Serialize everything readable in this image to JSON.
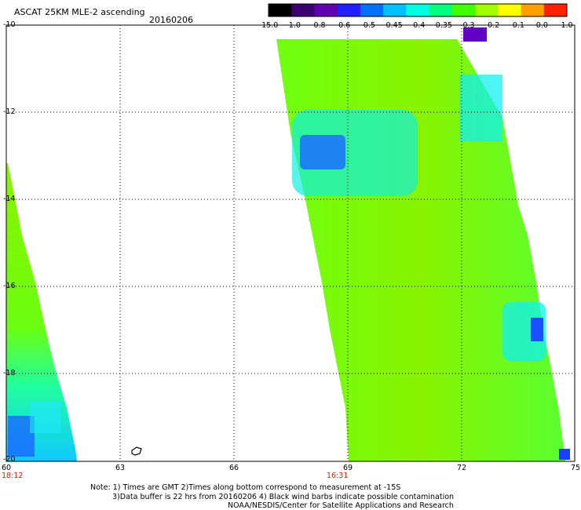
{
  "header": {
    "title": "ASCAT 25KM MLE-2 ascending",
    "date": "20160206"
  },
  "colorbar": {
    "labels": [
      "-15.0",
      "-1.0",
      "-0.8",
      "-0.6",
      "-0.5",
      "-0.45",
      "-0.4",
      "-0.35",
      "-0.3",
      "-0.2",
      "-0.1",
      "0.0",
      "1.0"
    ],
    "colors": [
      "#000000",
      "#3a0070",
      "#6000b0",
      "#2020ff",
      "#0070ff",
      "#00c0ff",
      "#00ffe0",
      "#00ff80",
      "#40ff00",
      "#a0ff00",
      "#ffff00",
      "#ffa000",
      "#ff2000"
    ]
  },
  "axes": {
    "lat_labels": [
      "-10",
      "-12",
      "-14",
      "-16",
      "-18",
      "-20"
    ],
    "lon_labels": [
      "60",
      "63",
      "66",
      "69",
      "72",
      "75"
    ],
    "times": [
      "18:12",
      "16:31"
    ]
  },
  "notes": {
    "line1": "Note: 1) Times are GMT 2)Times along bottom correspond to measurement at -15S",
    "line2": "3)Data buffer is 22 hrs from 20160206 4) Black wind barbs indicate possible contamination",
    "line3": "NOAA/NESDIS/Center for Satellite Applications and Research"
  }
}
